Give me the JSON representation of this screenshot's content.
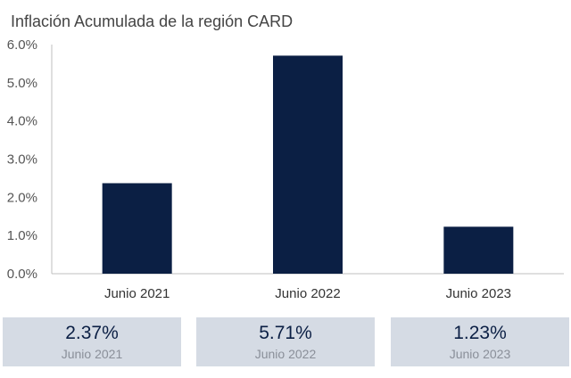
{
  "chart_data": {
    "type": "bar",
    "title": "Inflación Acumulada de la región CARD",
    "xlabel": "",
    "ylabel": "",
    "categories": [
      "Junio 2021",
      "Junio 2022",
      "Junio 2023"
    ],
    "values": [
      2.37,
      5.71,
      1.23
    ],
    "ylim": [
      0,
      6
    ],
    "yticks": [
      "0.0%",
      "1.0%",
      "2.0%",
      "3.0%",
      "4.0%",
      "5.0%",
      "6.0%"
    ],
    "grid": false,
    "bar_color": "#0b1f44"
  },
  "cards": [
    {
      "value": "2.37%",
      "label": "Junio 2021"
    },
    {
      "value": "5.71%",
      "label": "Junio 2022"
    },
    {
      "value": "1.23%",
      "label": "Junio 2023"
    }
  ],
  "colors": {
    "card_background": "#d5dbe4",
    "accent": "#0b1f44"
  }
}
